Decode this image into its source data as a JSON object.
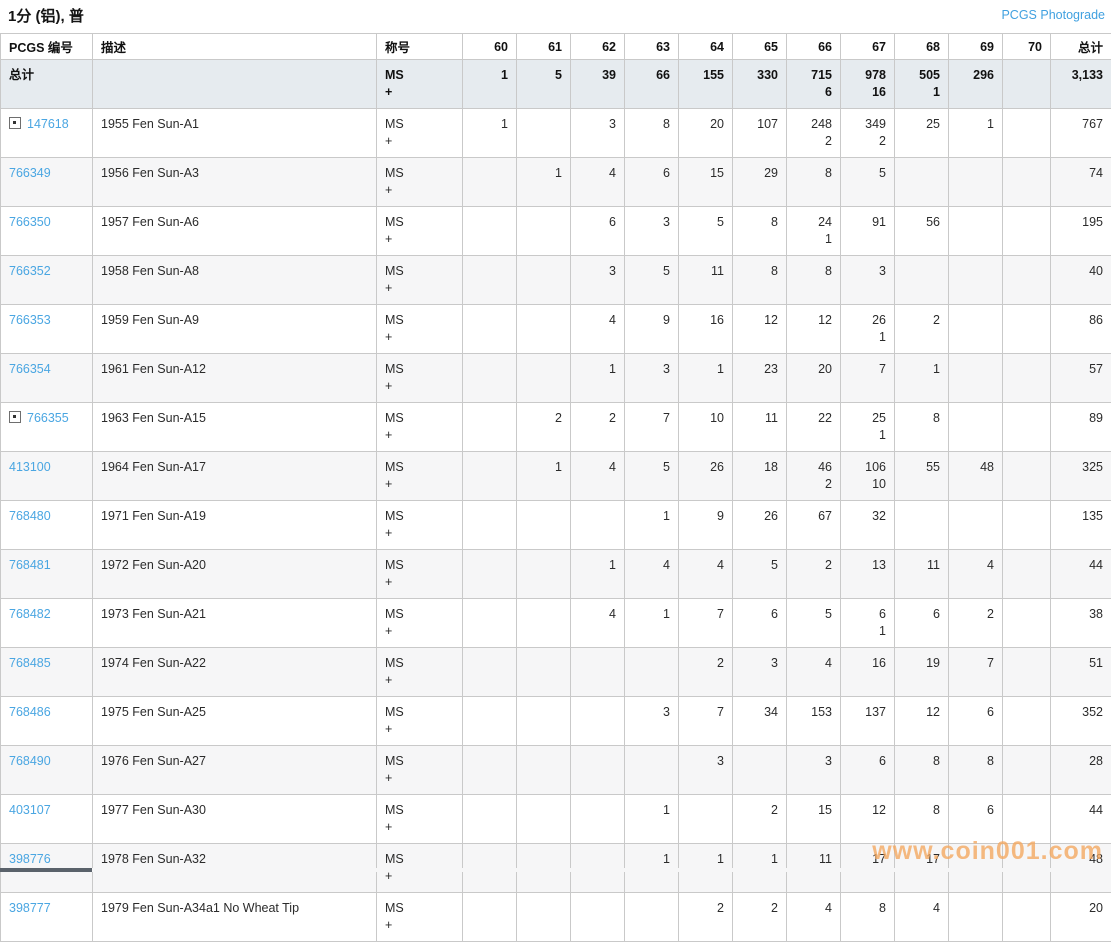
{
  "page": {
    "title": "1分 (铝), 普",
    "photograde_link": "PCGS Photograde",
    "watermark": "www.coin001.com"
  },
  "colors": {
    "link_blue": "#4aa6e2",
    "total_row_bg": "#e6ebef",
    "alt_row_bg": "#f6f6f7",
    "border_gray": "#c9c9c9",
    "watermark_orange": "#f3a65e"
  },
  "table": {
    "headers": {
      "pcgs": "PCGS 编号",
      "desc": "描述",
      "designation": "称号",
      "grades": [
        "60",
        "61",
        "62",
        "63",
        "64",
        "65",
        "66",
        "67",
        "68",
        "69",
        "70"
      ],
      "total": "总计"
    },
    "total_row": {
      "label": "总计",
      "designation": [
        "MS",
        "+"
      ],
      "grades": [
        [
          "1"
        ],
        [
          "5"
        ],
        [
          "39"
        ],
        [
          "66"
        ],
        [
          "155"
        ],
        [
          "330"
        ],
        [
          "715",
          "6"
        ],
        [
          "978",
          "16"
        ],
        [
          "505",
          "1"
        ],
        [
          "296"
        ],
        []
      ],
      "total": "3,133"
    },
    "rows": [
      {
        "pcgs": "147618",
        "expand_icon": true,
        "desc": "1955 Fen Sun-A1",
        "designation": [
          "MS",
          "+"
        ],
        "grades": [
          [
            "1"
          ],
          [],
          [
            "3"
          ],
          [
            "8"
          ],
          [
            "20"
          ],
          [
            "107"
          ],
          [
            "248",
            "2"
          ],
          [
            "349",
            "2"
          ],
          [
            "25"
          ],
          [
            "1"
          ],
          []
        ],
        "total": "767"
      },
      {
        "pcgs": "766349",
        "expand_icon": false,
        "desc": "1956 Fen Sun-A3",
        "designation": [
          "MS",
          "+"
        ],
        "grades": [
          [],
          [
            "1"
          ],
          [
            "4"
          ],
          [
            "6"
          ],
          [
            "15"
          ],
          [
            "29"
          ],
          [
            "8"
          ],
          [
            "5"
          ],
          [],
          [],
          []
        ],
        "total": "74"
      },
      {
        "pcgs": "766350",
        "expand_icon": false,
        "desc": "1957 Fen Sun-A6",
        "designation": [
          "MS",
          "+"
        ],
        "grades": [
          [],
          [],
          [
            "6"
          ],
          [
            "3"
          ],
          [
            "5"
          ],
          [
            "8"
          ],
          [
            "24",
            "1"
          ],
          [
            "91"
          ],
          [
            "56"
          ],
          [],
          []
        ],
        "total": "195"
      },
      {
        "pcgs": "766352",
        "expand_icon": false,
        "desc": "1958 Fen Sun-A8",
        "designation": [
          "MS",
          "+"
        ],
        "grades": [
          [],
          [],
          [
            "3"
          ],
          [
            "5"
          ],
          [
            "11"
          ],
          [
            "8"
          ],
          [
            "8"
          ],
          [
            "3"
          ],
          [],
          [],
          []
        ],
        "total": "40"
      },
      {
        "pcgs": "766353",
        "expand_icon": false,
        "desc": "1959 Fen Sun-A9",
        "designation": [
          "MS",
          "+"
        ],
        "grades": [
          [],
          [],
          [
            "4"
          ],
          [
            "9"
          ],
          [
            "16"
          ],
          [
            "12"
          ],
          [
            "12"
          ],
          [
            "26",
            "1"
          ],
          [
            "2"
          ],
          [],
          []
        ],
        "total": "86"
      },
      {
        "pcgs": "766354",
        "expand_icon": false,
        "desc": "1961 Fen Sun-A12",
        "designation": [
          "MS",
          "+"
        ],
        "grades": [
          [],
          [],
          [
            "1"
          ],
          [
            "3"
          ],
          [
            "1"
          ],
          [
            "23"
          ],
          [
            "20"
          ],
          [
            "7"
          ],
          [
            "1"
          ],
          [],
          []
        ],
        "total": "57"
      },
      {
        "pcgs": "766355",
        "expand_icon": true,
        "desc": "1963 Fen Sun-A15",
        "designation": [
          "MS",
          "+"
        ],
        "grades": [
          [],
          [
            "2"
          ],
          [
            "2"
          ],
          [
            "7"
          ],
          [
            "10"
          ],
          [
            "11"
          ],
          [
            "22"
          ],
          [
            "25",
            "1"
          ],
          [
            "8"
          ],
          [],
          []
        ],
        "total": "89"
      },
      {
        "pcgs": "413100",
        "expand_icon": false,
        "desc": "1964 Fen Sun-A17",
        "designation": [
          "MS",
          "+"
        ],
        "grades": [
          [],
          [
            "1"
          ],
          [
            "4"
          ],
          [
            "5"
          ],
          [
            "26"
          ],
          [
            "18"
          ],
          [
            "46",
            "2"
          ],
          [
            "106",
            "10"
          ],
          [
            "55"
          ],
          [
            "48"
          ],
          []
        ],
        "total": "325"
      },
      {
        "pcgs": "768480",
        "expand_icon": false,
        "desc": "1971 Fen Sun-A19",
        "designation": [
          "MS",
          "+"
        ],
        "grades": [
          [],
          [],
          [],
          [
            "1"
          ],
          [
            "9"
          ],
          [
            "26"
          ],
          [
            "67"
          ],
          [
            "32"
          ],
          [],
          [],
          []
        ],
        "total": "135"
      },
      {
        "pcgs": "768481",
        "expand_icon": false,
        "desc": "1972 Fen Sun-A20",
        "designation": [
          "MS",
          "+"
        ],
        "grades": [
          [],
          [],
          [
            "1"
          ],
          [
            "4"
          ],
          [
            "4"
          ],
          [
            "5"
          ],
          [
            "2"
          ],
          [
            "13"
          ],
          [
            "11"
          ],
          [
            "4"
          ],
          []
        ],
        "total": "44"
      },
      {
        "pcgs": "768482",
        "expand_icon": false,
        "desc": "1973 Fen Sun-A21",
        "designation": [
          "MS",
          "+"
        ],
        "grades": [
          [],
          [],
          [
            "4"
          ],
          [
            "1"
          ],
          [
            "7"
          ],
          [
            "6"
          ],
          [
            "5"
          ],
          [
            "6",
            "1"
          ],
          [
            "6"
          ],
          [
            "2"
          ],
          []
        ],
        "total": "38"
      },
      {
        "pcgs": "768485",
        "expand_icon": false,
        "desc": "1974 Fen Sun-A22",
        "designation": [
          "MS",
          "+"
        ],
        "grades": [
          [],
          [],
          [],
          [],
          [
            "2"
          ],
          [
            "3"
          ],
          [
            "4"
          ],
          [
            "16"
          ],
          [
            "19"
          ],
          [
            "7"
          ],
          []
        ],
        "total": "51"
      },
      {
        "pcgs": "768486",
        "expand_icon": false,
        "desc": "1975 Fen Sun-A25",
        "designation": [
          "MS",
          "+"
        ],
        "grades": [
          [],
          [],
          [],
          [
            "3"
          ],
          [
            "7"
          ],
          [
            "34"
          ],
          [
            "153"
          ],
          [
            "137"
          ],
          [
            "12"
          ],
          [
            "6"
          ],
          []
        ],
        "total": "352"
      },
      {
        "pcgs": "768490",
        "expand_icon": false,
        "desc": "1976 Fen Sun-A27",
        "designation": [
          "MS",
          "+"
        ],
        "grades": [
          [],
          [],
          [],
          [],
          [
            "3"
          ],
          [],
          [
            "3"
          ],
          [
            "6"
          ],
          [
            "8"
          ],
          [
            "8"
          ],
          []
        ],
        "total": "28"
      },
      {
        "pcgs": "403107",
        "expand_icon": false,
        "desc": "1977 Fen Sun-A30",
        "designation": [
          "MS",
          "+"
        ],
        "grades": [
          [],
          [],
          [],
          [
            "1"
          ],
          [],
          [
            "2"
          ],
          [
            "15"
          ],
          [
            "12"
          ],
          [
            "8"
          ],
          [
            "6"
          ],
          []
        ],
        "total": "44"
      },
      {
        "pcgs": "398776",
        "expand_icon": false,
        "desc": "1978 Fen Sun-A32",
        "designation": [
          "MS",
          "+"
        ],
        "grades": [
          [],
          [],
          [],
          [
            "1"
          ],
          [
            "1"
          ],
          [
            "1"
          ],
          [
            "11"
          ],
          [
            "17"
          ],
          [
            "17"
          ],
          [],
          []
        ],
        "total": "48"
      },
      {
        "pcgs": "398777",
        "expand_icon": false,
        "desc": "1979 Fen Sun-A34a1 No Wheat Tip",
        "designation": [
          "MS",
          "+"
        ],
        "grades": [
          [],
          [],
          [],
          [],
          [
            "2"
          ],
          [
            "2"
          ],
          [
            "4"
          ],
          [
            "8"
          ],
          [
            "4"
          ],
          [],
          []
        ],
        "total": "20"
      }
    ]
  }
}
